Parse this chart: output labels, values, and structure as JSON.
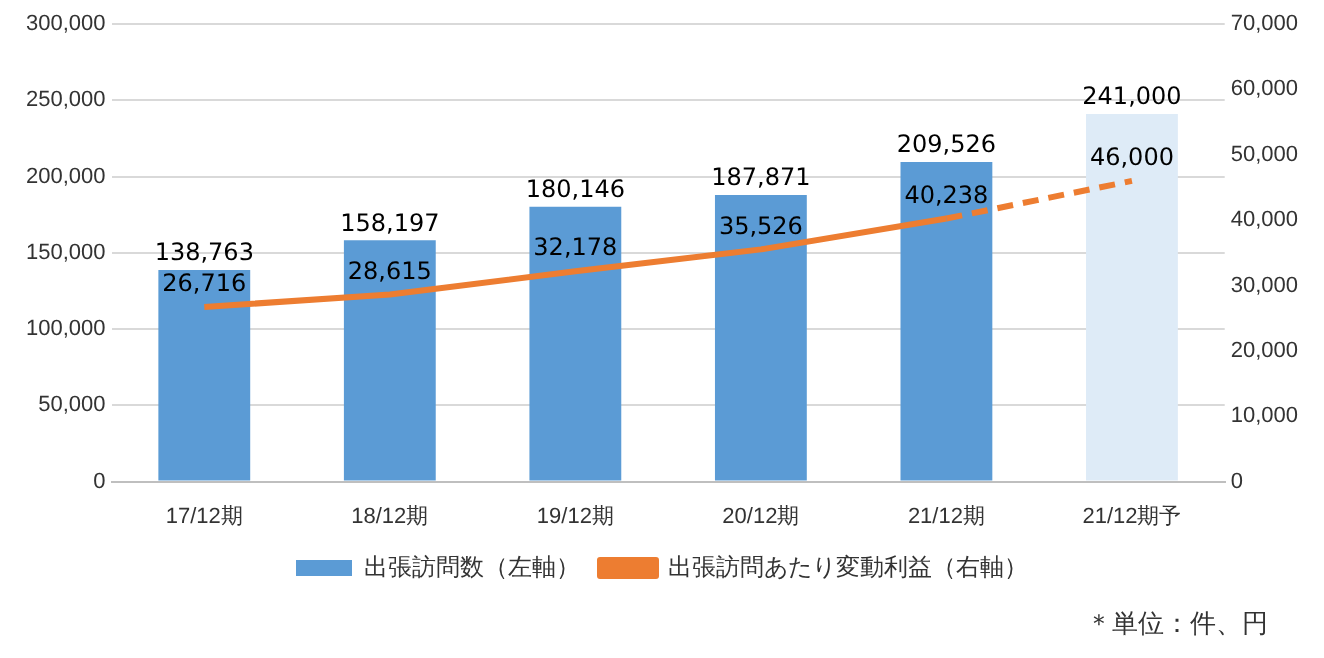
{
  "chart_data": {
    "type": "bar",
    "categories": [
      "17/12期",
      "18/12期",
      "19/12期",
      "20/12期",
      "21/12期",
      "21/12期予"
    ],
    "series": [
      {
        "name": "出張訪問数（左軸）",
        "color": "#5b9bd5",
        "colors": [
          "#5b9bd5",
          "#5b9bd5",
          "#5b9bd5",
          "#5b9bd5",
          "#5b9bd5",
          "#deebf7"
        ],
        "values": [
          138763,
          158197,
          180146,
          187871,
          209526,
          241000
        ],
        "value_labels": [
          "138,763",
          "158,197",
          "180,146",
          "187,871",
          "209,526",
          "241,000"
        ]
      },
      {
        "name": "出張訪問あたり変動利益（右軸）",
        "type": "line",
        "axis": "y2",
        "color": "#ed7d31",
        "line_style": "solid",
        "values": [
          26716,
          28615,
          32178,
          35526,
          40238,
          null
        ],
        "value_labels": [
          "26,716",
          "28,615",
          "32,178",
          "35,526",
          "40,238",
          null
        ]
      },
      {
        "type": "line",
        "axis": "y2",
        "color": "#ed7d31",
        "line_style": "dashed",
        "values": [
          null,
          null,
          null,
          null,
          40238,
          46000
        ],
        "value_labels": [
          null,
          null,
          null,
          null,
          null,
          "46,000"
        ]
      }
    ],
    "ylim": [
      0,
      300000
    ],
    "yticks": [
      0,
      {
        "value": 50000,
        "label": "50,000"
      },
      {
        "value": 100000,
        "label": "100,000"
      },
      {
        "value": 150000,
        "label": "150,000"
      },
      {
        "value": 200000,
        "label": "200,000"
      },
      {
        "value": 250000,
        "label": "250,000"
      },
      {
        "value": 300000,
        "label": "300,000"
      }
    ],
    "y2lim": [
      0,
      70000
    ],
    "y2ticks": [
      0,
      {
        "value": 10000,
        "label": "10,000"
      },
      {
        "value": 20000,
        "label": "20,000"
      },
      {
        "value": 30000,
        "label": "30,000"
      },
      {
        "value": 40000,
        "label": "40,000"
      },
      {
        "value": 50000,
        "label": "50,000"
      },
      {
        "value": 60000,
        "label": "60,000"
      },
      {
        "value": 70000,
        "label": "70,000"
      }
    ],
    "grid": "y",
    "legend": "bottom",
    "marker": "none",
    "annotations": [
      "＊単位：件、円"
    ]
  }
}
